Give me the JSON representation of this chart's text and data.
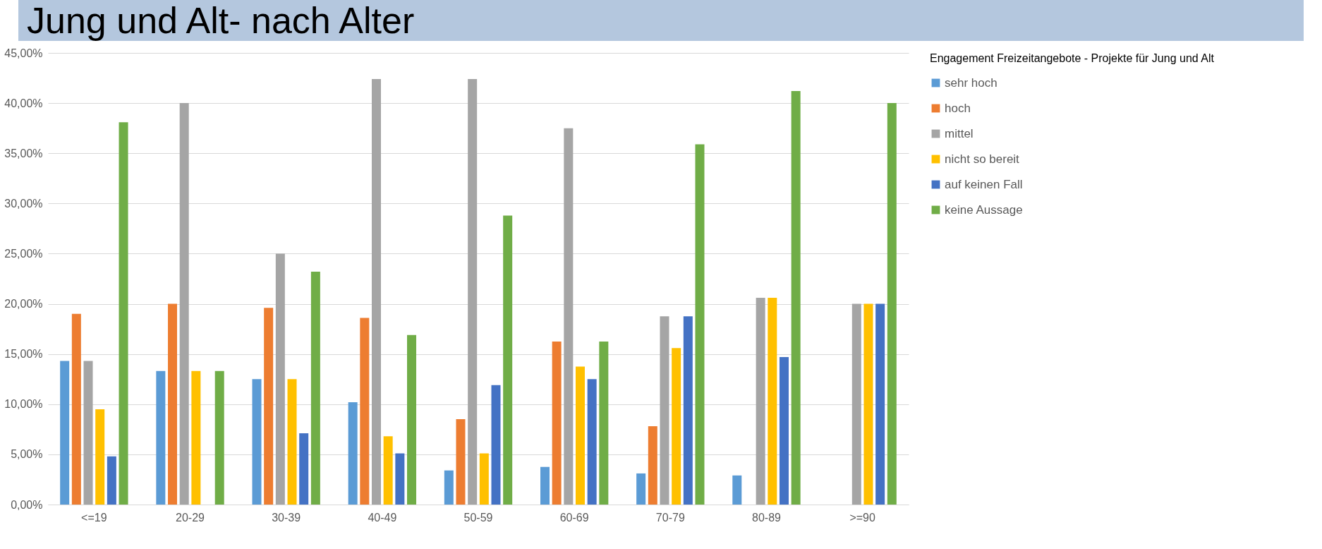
{
  "chart_data": {
    "type": "bar",
    "title": "Jung und Alt- nach Alter",
    "legend_title": "Engagement  Freizeitangebote - Projekte für Jung und Alt",
    "categories": [
      "<=19",
      "20-29",
      "30-39",
      "40-49",
      "50-59",
      "60-69",
      "70-79",
      "80-89",
      ">=90"
    ],
    "series": [
      {
        "name": "sehr hoch",
        "color": "#5b9bd5",
        "values": [
          14.3,
          13.3,
          12.5,
          10.2,
          3.4,
          3.75,
          3.1,
          2.9,
          null
        ]
      },
      {
        "name": "hoch",
        "color": "#ed7d31",
        "values": [
          19.0,
          20.0,
          19.6,
          18.6,
          8.5,
          16.25,
          7.8,
          null,
          null
        ]
      },
      {
        "name": "mittel",
        "color": "#a5a5a5",
        "values": [
          14.3,
          40.0,
          25.0,
          42.4,
          42.4,
          37.5,
          18.75,
          20.6,
          20.0
        ]
      },
      {
        "name": "nicht so bereit",
        "color": "#ffc000",
        "values": [
          9.5,
          13.3,
          12.5,
          6.8,
          5.1,
          13.75,
          15.6,
          20.6,
          20.0
        ]
      },
      {
        "name": "auf keinen Fall",
        "color": "#4472c4",
        "values": [
          4.8,
          null,
          7.1,
          5.1,
          11.9,
          12.5,
          18.75,
          14.7,
          20.0
        ]
      },
      {
        "name": "keine Aussage",
        "color": "#70ad47",
        "values": [
          38.1,
          13.3,
          23.2,
          16.9,
          28.8,
          16.25,
          35.9,
          41.2,
          40.0
        ]
      }
    ],
    "ylim": [
      0,
      45
    ],
    "yticks": [
      {
        "value": 0,
        "label": "0,00%"
      },
      {
        "value": 5,
        "label": "5,00%"
      },
      {
        "value": 10,
        "label": "10,00%"
      },
      {
        "value": 15,
        "label": "15,00%"
      },
      {
        "value": 20,
        "label": "20,00%"
      },
      {
        "value": 25,
        "label": "25,00%"
      },
      {
        "value": 30,
        "label": "30,00%"
      },
      {
        "value": 35,
        "label": "35,00%"
      },
      {
        "value": 40,
        "label": "40,00%"
      },
      {
        "value": 45,
        "label": "45,00%"
      }
    ],
    "grid": "y",
    "legend": "right"
  }
}
